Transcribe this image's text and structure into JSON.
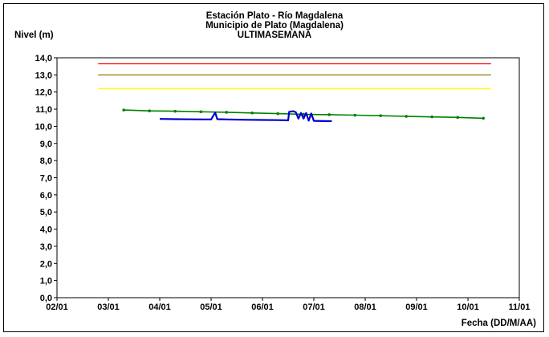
{
  "chart_data": {
    "type": "line",
    "title": [
      "Estación Plato - Río Magdalena",
      "Municipio de Plato (Magdalena)",
      "ULTIMASEMANA"
    ],
    "ylabel": "Nivel (m)",
    "xlabel": "Fecha (DD/M/AA)",
    "ylim": [
      0,
      14
    ],
    "y_ticks": [
      "0,0",
      "1,0",
      "2,0",
      "3,0",
      "4,0",
      "5,0",
      "6,0",
      "7,0",
      "8,0",
      "9,0",
      "10,0",
      "11,0",
      "12,0",
      "13,0",
      "14,0"
    ],
    "xlim": [
      0,
      9
    ],
    "x_ticks": [
      "02/01",
      "03/01",
      "04/01",
      "05/01",
      "06/01",
      "07/01",
      "08/01",
      "09/01",
      "10/01",
      "11/01"
    ],
    "grid": false,
    "legend": "none",
    "thresholds": [
      {
        "level": 13.65,
        "color": "#ff0000",
        "x_start": 0.8,
        "x_end": 8.45
      },
      {
        "level": 13.0,
        "color": "#808000",
        "x_start": 0.8,
        "x_end": 8.45
      },
      {
        "level": 12.2,
        "color": "#ffff00",
        "x_start": 0.8,
        "x_end": 8.45
      }
    ],
    "series": [
      {
        "color": "#008000",
        "marker": "dot",
        "points": [
          [
            1.3,
            10.95
          ],
          [
            1.8,
            10.9
          ],
          [
            2.3,
            10.88
          ],
          [
            2.8,
            10.85
          ],
          [
            3.3,
            10.82
          ],
          [
            3.8,
            10.78
          ],
          [
            4.3,
            10.74
          ],
          [
            4.8,
            10.7
          ],
          [
            5.3,
            10.68
          ],
          [
            5.8,
            10.65
          ],
          [
            6.3,
            10.62
          ],
          [
            6.8,
            10.58
          ],
          [
            7.3,
            10.55
          ],
          [
            7.8,
            10.52
          ],
          [
            8.3,
            10.47
          ]
        ]
      },
      {
        "color": "#0000cc",
        "marker": "none",
        "points": [
          [
            2.0,
            10.43
          ],
          [
            2.3,
            10.42
          ],
          [
            2.6,
            10.41
          ],
          [
            3.0,
            10.4
          ],
          [
            3.08,
            10.8
          ],
          [
            3.12,
            10.42
          ],
          [
            3.3,
            10.4
          ],
          [
            3.7,
            10.38
          ],
          [
            4.0,
            10.37
          ],
          [
            4.3,
            10.36
          ],
          [
            4.5,
            10.35
          ],
          [
            4.52,
            10.85
          ],
          [
            4.6,
            10.88
          ],
          [
            4.65,
            10.82
          ],
          [
            4.7,
            10.45
          ],
          [
            4.75,
            10.78
          ],
          [
            4.8,
            10.45
          ],
          [
            4.85,
            10.78
          ],
          [
            4.9,
            10.33
          ],
          [
            4.95,
            10.75
          ],
          [
            5.0,
            10.32
          ],
          [
            5.3,
            10.3
          ],
          [
            5.35,
            10.31
          ]
        ]
      }
    ]
  }
}
